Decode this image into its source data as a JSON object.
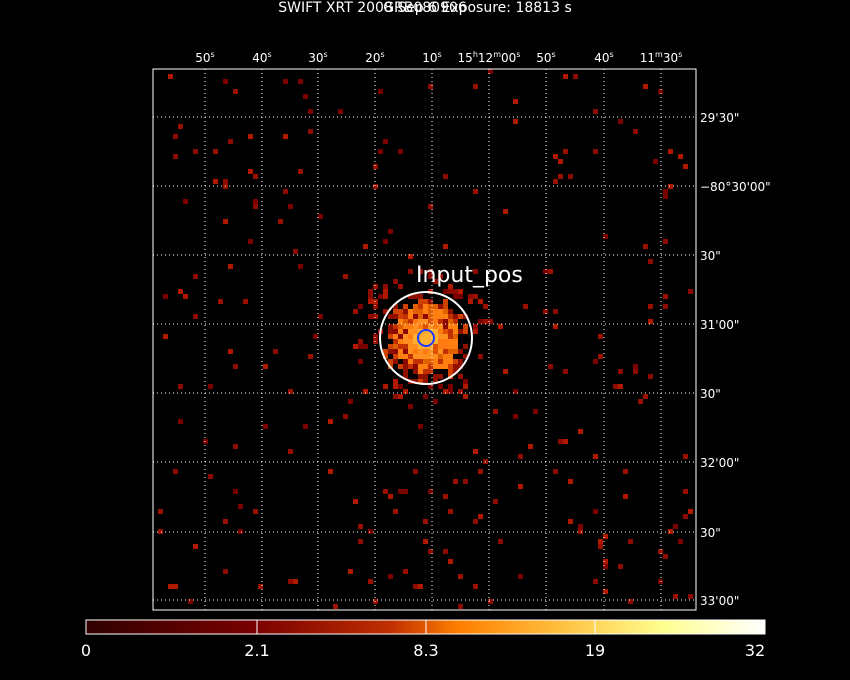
{
  "header": {
    "title": "GRB080906",
    "subtitle": "SWIFT XRT   2008 Sep  6    Exposure: 18813 s"
  },
  "image": {
    "source_label": "Input_pos",
    "background_color": "#000000",
    "frame_color": "#ffffff",
    "grid_color": "#ffffff",
    "source_circle_color": "#ffffff",
    "inner_marker_color": "#1e3cff",
    "grid_style": "dotted"
  },
  "axes": {
    "ra_ticks": [
      {
        "text": "50",
        "sup": "s"
      },
      {
        "text": "40",
        "sup": "s"
      },
      {
        "text": "30",
        "sup": "s"
      },
      {
        "text": "20",
        "sup": "s"
      },
      {
        "text": "10",
        "sup": "s"
      },
      {
        "text": "15h12m00s",
        "parts": [
          [
            "15",
            ""
          ],
          [
            "h",
            "sup"
          ],
          [
            "12",
            ""
          ],
          [
            "m",
            "sup"
          ],
          [
            "00",
            ""
          ],
          [
            "s",
            "sup"
          ]
        ]
      },
      {
        "text": "50",
        "sup": "s"
      },
      {
        "text": "40",
        "sup": "s"
      },
      {
        "text": "11m30s",
        "parts": [
          [
            "11",
            ""
          ],
          [
            "m",
            "sup"
          ],
          [
            "30",
            ""
          ],
          [
            "s",
            "sup"
          ]
        ]
      }
    ],
    "dec_ticks": [
      "29'30\"",
      "−80°30'00\"",
      "30\"",
      "31'00\"",
      "30\"",
      "32'00\"",
      "30\"",
      "33'00\""
    ]
  },
  "colorbar": {
    "ticks": [
      "0",
      "2.1",
      "8.3",
      "19",
      "32"
    ],
    "colors": [
      "#300000",
      "#7a0000",
      "#c03000",
      "#ff8000",
      "#ffc040",
      "#ffff90",
      "#ffffff"
    ]
  }
}
